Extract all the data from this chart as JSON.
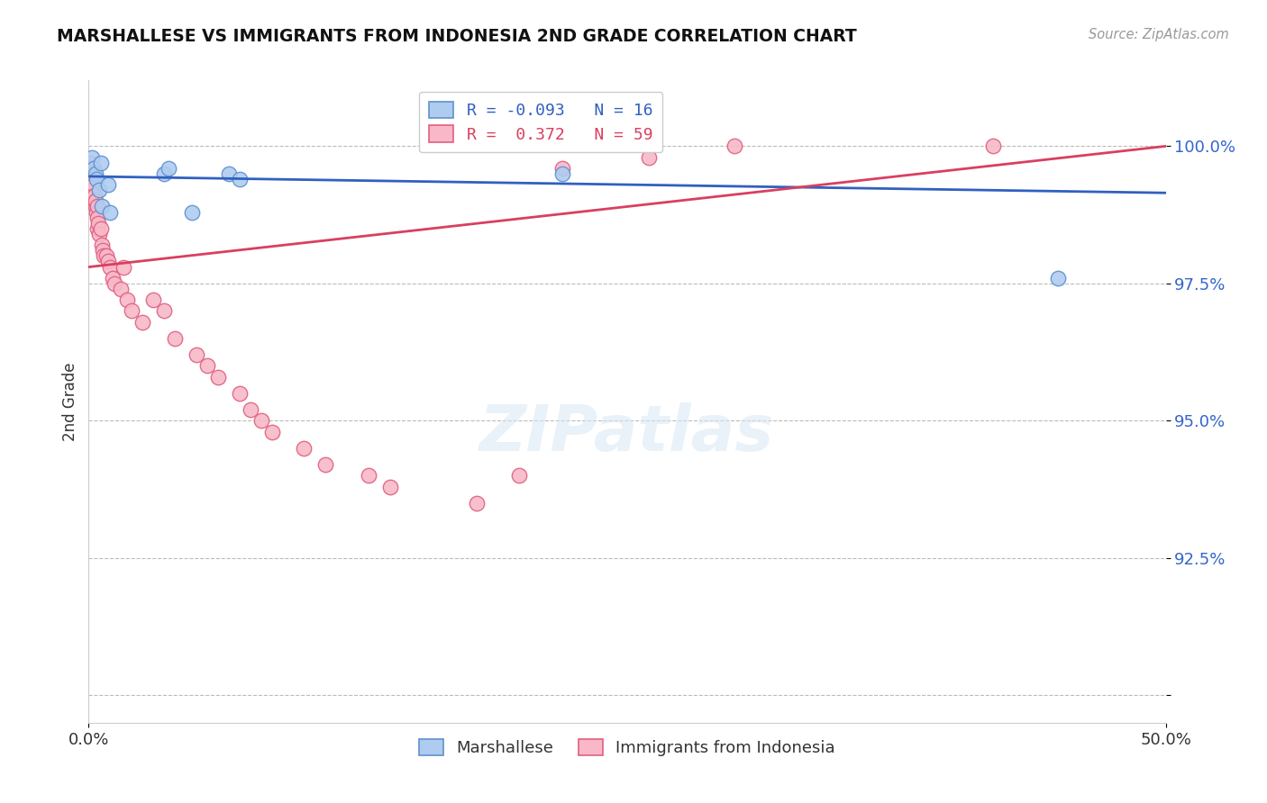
{
  "title": "MARSHALLESE VS IMMIGRANTS FROM INDONESIA 2ND GRADE CORRELATION CHART",
  "source": "Source: ZipAtlas.com",
  "ylabel": "2nd Grade",
  "yticks": [
    90.0,
    92.5,
    95.0,
    97.5,
    100.0
  ],
  "ytick_labels": [
    "",
    "92.5%",
    "95.0%",
    "97.5%",
    "100.0%"
  ],
  "xlim": [
    0.0,
    50.0
  ],
  "ylim": [
    89.5,
    101.2
  ],
  "legend_blue_label": "R = -0.093   N = 16",
  "legend_pink_label": "R =  0.372   N = 59",
  "legend_label_marshallese": "Marshallese",
  "legend_label_indonesia": "Immigrants from Indonesia",
  "blue_color": "#aeccf0",
  "pink_color": "#f8b8c8",
  "blue_edge_color": "#6090d0",
  "pink_edge_color": "#e06080",
  "blue_line_color": "#3060c0",
  "pink_line_color": "#d84060",
  "background_color": "#ffffff",
  "grid_color": "#bbbbbb",
  "blue_scatter_x": [
    0.15,
    0.25,
    0.3,
    0.35,
    0.5,
    0.55,
    0.6,
    0.9,
    1.0,
    3.5,
    3.7,
    4.8,
    6.5,
    7.0,
    22.0,
    45.0
  ],
  "blue_scatter_y": [
    99.8,
    99.6,
    99.5,
    99.4,
    99.2,
    99.7,
    98.9,
    99.3,
    98.8,
    99.5,
    99.6,
    98.8,
    99.5,
    99.4,
    99.5,
    97.6
  ],
  "pink_scatter_x": [
    0.05,
    0.07,
    0.08,
    0.09,
    0.1,
    0.1,
    0.12,
    0.12,
    0.13,
    0.15,
    0.15,
    0.18,
    0.2,
    0.2,
    0.22,
    0.25,
    0.28,
    0.3,
    0.32,
    0.35,
    0.38,
    0.4,
    0.42,
    0.45,
    0.5,
    0.55,
    0.6,
    0.65,
    0.7,
    0.8,
    0.9,
    1.0,
    1.1,
    1.2,
    1.5,
    1.6,
    1.8,
    2.0,
    2.5,
    3.0,
    3.5,
    4.0,
    5.0,
    5.5,
    6.0,
    7.0,
    7.5,
    8.0,
    8.5,
    10.0,
    11.0,
    13.0,
    14.0,
    18.0,
    20.0,
    22.0,
    26.0,
    30.0,
    42.0
  ],
  "pink_scatter_y": [
    99.7,
    99.6,
    99.5,
    99.4,
    99.5,
    99.3,
    99.6,
    99.4,
    99.2,
    99.5,
    99.3,
    99.1,
    99.4,
    99.2,
    99.3,
    99.0,
    99.1,
    98.9,
    99.0,
    98.8,
    98.9,
    98.7,
    98.5,
    98.6,
    98.4,
    98.5,
    98.2,
    98.1,
    98.0,
    98.0,
    97.9,
    97.8,
    97.6,
    97.5,
    97.4,
    97.8,
    97.2,
    97.0,
    96.8,
    97.2,
    97.0,
    96.5,
    96.2,
    96.0,
    95.8,
    95.5,
    95.2,
    95.0,
    94.8,
    94.5,
    94.2,
    94.0,
    93.8,
    93.5,
    94.0,
    99.6,
    99.8,
    100.0,
    100.0
  ],
  "blue_trend_x": [
    0.0,
    50.0
  ],
  "blue_trend_y": [
    99.45,
    99.15
  ],
  "pink_trend_x": [
    0.0,
    50.0
  ],
  "pink_trend_y": [
    97.8,
    100.0
  ]
}
